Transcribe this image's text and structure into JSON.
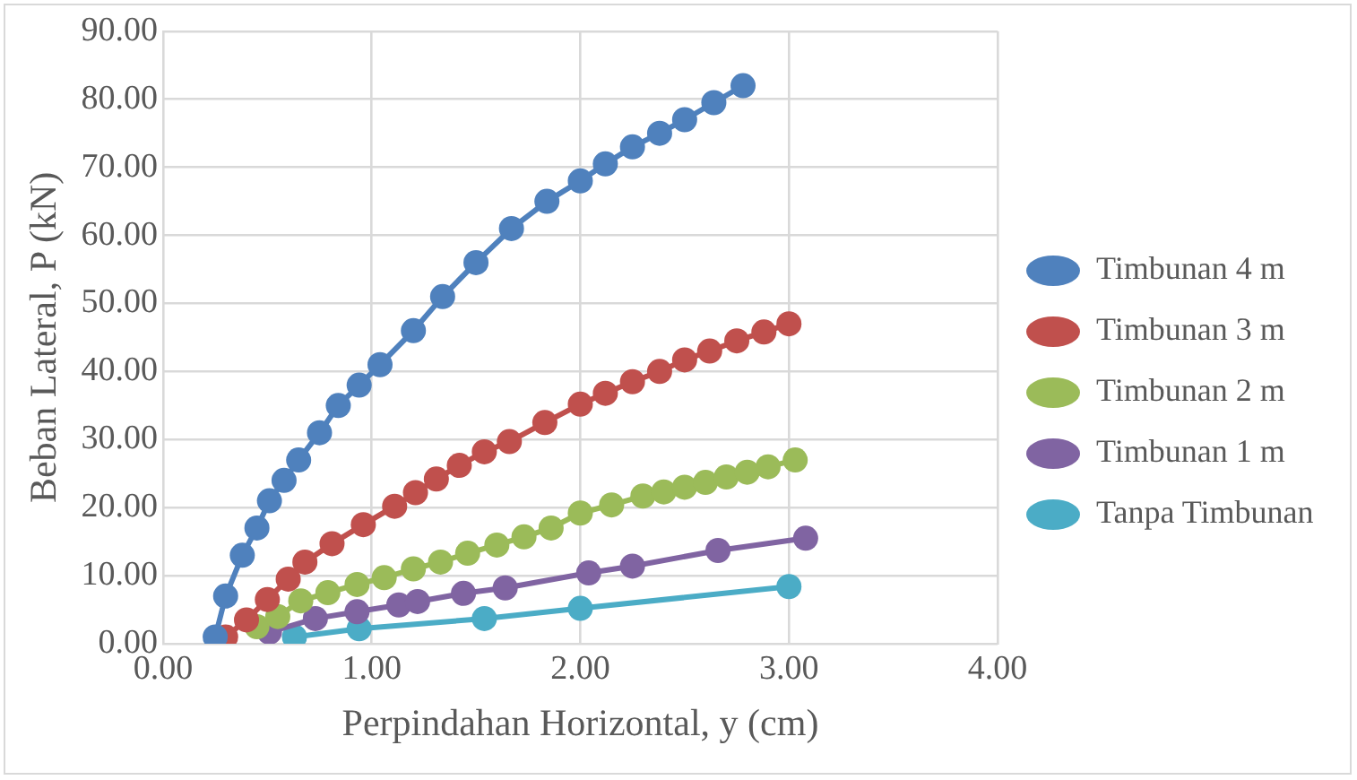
{
  "chart_data": {
    "type": "line",
    "xlabel": "Perpindahan Horizontal, y (cm)",
    "ylabel": "Beban Lateral, P (kN)",
    "xlim": [
      0,
      4
    ],
    "xticks": [
      {
        "value": 0,
        "label": "0.00"
      },
      {
        "value": 1,
        "label": "1.00"
      },
      {
        "value": 2,
        "label": "2.00"
      },
      {
        "value": 3,
        "label": "3.00"
      },
      {
        "value": 4,
        "label": "4.00"
      }
    ],
    "ylim": [
      0,
      90
    ],
    "yticks": [
      {
        "value": 0,
        "label": "0.00"
      },
      {
        "value": 10,
        "label": "10.00"
      },
      {
        "value": 20,
        "label": "20.00"
      },
      {
        "value": 30,
        "label": "30.00"
      },
      {
        "value": 40,
        "label": "40.00"
      },
      {
        "value": 50,
        "label": "50.00"
      },
      {
        "value": 60,
        "label": "60.00"
      },
      {
        "value": 70,
        "label": "70.00"
      },
      {
        "value": 80,
        "label": "80.00"
      },
      {
        "value": 90,
        "label": "90.00"
      }
    ],
    "grid": true,
    "legend": "right",
    "marker": "circle",
    "line_style": "solid",
    "series": [
      {
        "name": "Timbunan 4 m",
        "color": "#4f81bd",
        "x": [
          0.25,
          0.3,
          0.38,
          0.45,
          0.51,
          0.58,
          0.65,
          0.75,
          0.84,
          0.94,
          1.04,
          1.2,
          1.34,
          1.5,
          1.67,
          1.84,
          2.0,
          2.12,
          2.25,
          2.38,
          2.5,
          2.64,
          2.78
        ],
        "values": [
          1,
          7,
          13,
          17,
          21,
          24,
          27,
          31,
          35,
          38,
          41,
          46,
          51,
          56,
          61,
          65,
          68,
          70.5,
          73,
          75,
          77,
          79.5,
          82
        ]
      },
      {
        "name": "Timbunan 3 m",
        "color": "#c0504d",
        "x": [
          0.3,
          0.4,
          0.5,
          0.6,
          0.68,
          0.81,
          0.96,
          1.11,
          1.21,
          1.31,
          1.42,
          1.54,
          1.66,
          1.83,
          2.0,
          2.12,
          2.25,
          2.38,
          2.5,
          2.62,
          2.75,
          2.88,
          3.0
        ],
        "values": [
          1,
          3.5,
          6.5,
          9.5,
          12,
          14.7,
          17.5,
          20.2,
          22.2,
          24.2,
          26.2,
          28.2,
          29.7,
          32.5,
          35.2,
          36.8,
          38.5,
          40,
          41.7,
          43,
          44.5,
          45.8,
          47
        ]
      },
      {
        "name": "Timbunan 2 m",
        "color": "#9bbb59",
        "x": [
          0.45,
          0.55,
          0.66,
          0.79,
          0.93,
          1.06,
          1.2,
          1.33,
          1.46,
          1.6,
          1.73,
          1.86,
          2.0,
          2.15,
          2.3,
          2.4,
          2.5,
          2.6,
          2.7,
          2.8,
          2.9,
          3.03
        ],
        "values": [
          2.5,
          4,
          6.3,
          7.5,
          8.7,
          9.7,
          11,
          12,
          13.3,
          14.5,
          15.7,
          17,
          19.2,
          20.4,
          21.7,
          22.3,
          23,
          23.7,
          24.5,
          25.2,
          26,
          27
        ]
      },
      {
        "name": "Timbunan 1 m",
        "color": "#8064a2",
        "x": [
          0.51,
          0.73,
          0.93,
          1.13,
          1.22,
          1.44,
          1.64,
          2.04,
          2.25,
          2.66,
          3.08
        ],
        "values": [
          1.7,
          3.7,
          4.7,
          5.7,
          6.2,
          7.4,
          8.2,
          10.4,
          11.4,
          13.7,
          15.5
        ]
      },
      {
        "name": "Tanpa Timbunan",
        "color": "#4bacc6",
        "x": [
          0.63,
          0.94,
          1.54,
          2.0,
          3.0
        ],
        "values": [
          1.0,
          2.2,
          3.7,
          5.2,
          8.4
        ]
      }
    ]
  }
}
